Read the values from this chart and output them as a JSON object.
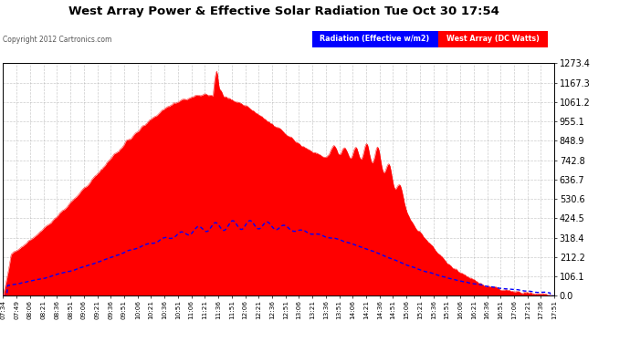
{
  "title": "West Array Power & Effective Solar Radiation Tue Oct 30 17:54",
  "copyright": "Copyright 2012 Cartronics.com",
  "legend_radiation": "Radiation (Effective w/m2)",
  "legend_west": "West Array (DC Watts)",
  "y_max": 1273.4,
  "y_min": 0.0,
  "y_ticks": [
    0.0,
    106.1,
    212.2,
    318.4,
    424.5,
    530.6,
    636.7,
    742.8,
    848.9,
    955.1,
    1061.2,
    1167.3,
    1273.4
  ],
  "x_tick_labels": [
    "07:34",
    "07:49",
    "08:06",
    "08:21",
    "08:36",
    "08:51",
    "09:06",
    "09:21",
    "09:36",
    "09:51",
    "10:06",
    "10:21",
    "10:36",
    "10:51",
    "11:06",
    "11:21",
    "11:36",
    "11:51",
    "12:06",
    "12:21",
    "12:36",
    "12:51",
    "13:06",
    "13:21",
    "13:36",
    "13:51",
    "14:06",
    "14:21",
    "14:36",
    "14:51",
    "15:06",
    "15:21",
    "15:36",
    "15:51",
    "16:06",
    "16:21",
    "16:36",
    "16:51",
    "17:06",
    "17:21",
    "17:36",
    "17:51"
  ],
  "bg_color": "#ffffff",
  "plot_bg_color": "#ffffff",
  "grid_color": "#aaaaaa",
  "red_fill_color": "#ff0000",
  "blue_line_color": "#0000ff",
  "title_color": "#000000",
  "legend_radiation_bg": "#0000ff",
  "legend_west_bg": "#ff0000",
  "legend_text_color": "#ffffff",
  "copyright_color": "#555555"
}
